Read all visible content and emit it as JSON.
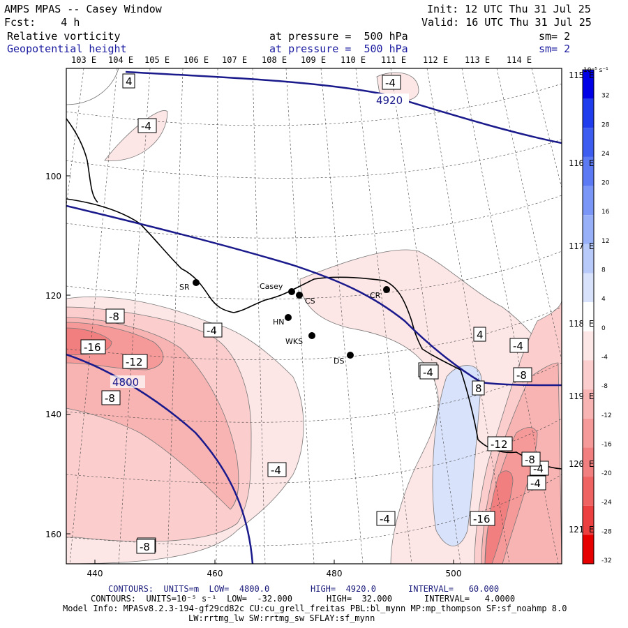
{
  "header": {
    "title": "AMPS MPAS -- Casey Window",
    "fcst": "Fcst:    4 h",
    "init": "Init: 12 UTC Thu 31 Jul 25",
    "valid": "Valid: 16 UTC Thu 31 Jul 25",
    "field1": "Relative vorticity",
    "field2": "Geopotential height",
    "level1": "at pressure =  500 hPa",
    "level2": "at pressure =  500 hPa",
    "sm1": "sm= 2",
    "sm2": "sm= 2"
  },
  "lon_top": [
    "103 E",
    "104 E",
    "105 E",
    "106 E",
    "107 E",
    "108 E",
    "109 E",
    "110 E",
    "111 E",
    "112 E",
    "113 E",
    "114 E"
  ],
  "lon_right": [
    "115 E",
    "116 E",
    "117 E",
    "118 E",
    "119 E",
    "120 E",
    "121 E"
  ],
  "y_ticks": [
    "100",
    "120",
    "140",
    "160"
  ],
  "x_ticks": [
    "440",
    "460",
    "480",
    "500"
  ],
  "colorbar": {
    "unit": "10⁻⁵ s⁻¹",
    "labels": [
      "32",
      "28",
      "24",
      "20",
      "16",
      "12",
      "8",
      "4",
      "0",
      "-4",
      "-8",
      "-12",
      "-16",
      "-20",
      "-24",
      "-28",
      "-32"
    ],
    "colors": [
      "#0000e6",
      "#1f3dec",
      "#3d5cf0",
      "#5c7af3",
      "#7a96f6",
      "#98b0f8",
      "#b8caf9",
      "#d8e2fb",
      "#ffffff",
      "#fde6e6",
      "#fbcdcd",
      "#f8b3b3",
      "#f59999",
      "#f27f7f",
      "#ef6363",
      "#ec3f3f",
      "#e60000"
    ]
  },
  "stations": [
    {
      "name": "SR"
    },
    {
      "name": "Casey"
    },
    {
      "name": "CS"
    },
    {
      "name": "HN"
    },
    {
      "name": "WKS"
    },
    {
      "name": "DS"
    },
    {
      "name": "CR"
    }
  ],
  "contour_labels": [
    "4",
    "-4",
    "-4",
    "-8",
    "-16",
    "-12",
    "-8",
    "-4",
    "-4",
    "-8",
    "-4",
    "4",
    "-4",
    "-4",
    "-4",
    "8",
    "-8",
    "-8",
    "-12",
    "-8",
    "-4",
    "-16",
    "-4"
  ],
  "height_labels": [
    "4920",
    "4800"
  ],
  "footer": {
    "line1_label": "CONTOURS:  UNITS=m  LOW=  4800.0",
    "line1_high": "HIGH=  4920.0",
    "line1_int": "INTERVAL=   60.000",
    "line2_label": "CONTOURS:  UNITS=10⁻⁵ s⁻¹  LOW=  -32.000",
    "line2_high": "HIGH=  32.000",
    "line2_int": "INTERVAL=   4.0000",
    "model1": "Model Info: MPASv8.2.3-194-gf29cd82c CU:cu_grell_freitas PBL:bl_mynn MP:mp_thompson SF:sf_noahmp 8.0",
    "model2": "LW:rrtmg_lw SW:rrtmg_sw SFLAY:sf_mynn"
  }
}
